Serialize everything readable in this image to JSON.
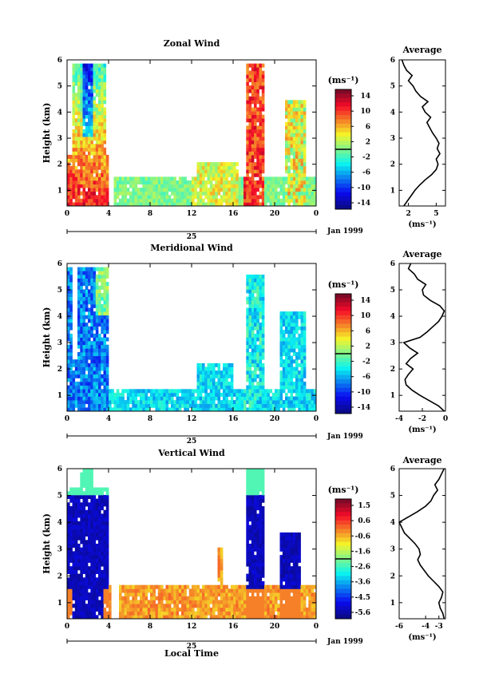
{
  "chart_data": [
    {
      "type": "heatmap",
      "title": "Zonal Wind",
      "ylabel": "Height (km)",
      "xticks": [
        "0",
        "4",
        "8",
        "12",
        "16",
        "20",
        "0"
      ],
      "yticks": [
        "1",
        "2",
        "3",
        "4",
        "5",
        "6"
      ],
      "date_label": "Jan 1999",
      "day_label": "25",
      "unit_label": "(ms⁻¹)",
      "colorbar_ticks": [
        "14",
        "10",
        "6",
        "2",
        "-2",
        "-6",
        "-10",
        "-14"
      ],
      "colorbar_range": [
        -14,
        14
      ],
      "profile": {
        "title": "Average",
        "xticks": [
          "2",
          "5"
        ],
        "xrange": [
          1,
          6
        ],
        "xlabel": "(ms⁻¹)",
        "yticks": [
          "1",
          "2",
          "3",
          "4",
          "5",
          "6"
        ],
        "heights": [
          0.4,
          0.6,
          0.8,
          1.0,
          1.2,
          1.4,
          1.6,
          1.8,
          2.0,
          2.2,
          2.4,
          2.6,
          2.8,
          3.0,
          3.2,
          3.4,
          3.6,
          3.8,
          4.0,
          4.2,
          4.4,
          4.6,
          4.8,
          5.0,
          5.2,
          5.4,
          5.6,
          5.8,
          6.0
        ],
        "values": [
          1.5,
          1.9,
          2.3,
          2.7,
          3.2,
          3.8,
          4.5,
          5.0,
          5.2,
          5.0,
          5.4,
          5.1,
          5.3,
          5.0,
          4.6,
          4.3,
          4.0,
          4.4,
          3.8,
          3.5,
          4.1,
          3.3,
          2.8,
          2.5,
          2.0,
          2.4,
          1.8,
          1.5,
          1.3
        ]
      }
    },
    {
      "type": "heatmap",
      "title": "Meridional Wind",
      "ylabel": "Height (km)",
      "xticks": [
        "0",
        "4",
        "8",
        "12",
        "16",
        "20",
        "0"
      ],
      "yticks": [
        "1",
        "2",
        "3",
        "4",
        "5",
        "6"
      ],
      "date_label": "Jan 1999",
      "day_label": "25",
      "unit_label": "(ms⁻¹)",
      "colorbar_ticks": [
        "14",
        "10",
        "6",
        "2",
        "-2",
        "-6",
        "-10",
        "-14"
      ],
      "colorbar_range": [
        -14,
        14
      ],
      "profile": {
        "title": "Average",
        "xticks": [
          "-4",
          "-2",
          "0"
        ],
        "xrange": [
          -4,
          0
        ],
        "xlabel": "(ms⁻¹)",
        "yticks": [
          "1",
          "2",
          "3",
          "4",
          "5",
          "6"
        ],
        "heights": [
          0.4,
          0.6,
          0.8,
          1.0,
          1.2,
          1.4,
          1.6,
          1.8,
          2.0,
          2.2,
          2.4,
          2.6,
          2.8,
          3.0,
          3.2,
          3.4,
          3.6,
          3.8,
          4.0,
          4.2,
          4.4,
          4.6,
          4.8,
          5.0,
          5.2,
          5.4,
          5.6,
          5.8,
          6.0
        ],
        "values": [
          -0.1,
          -0.6,
          -1.4,
          -2.2,
          -2.9,
          -3.4,
          -3.5,
          -3.2,
          -2.8,
          -3.4,
          -3.0,
          -2.4,
          -3.1,
          -3.6,
          -2.2,
          -1.6,
          -1.1,
          -0.6,
          -0.3,
          -0.1,
          -0.5,
          -1.3,
          -1.9,
          -2.0,
          -1.7,
          -2.4,
          -2.7,
          -3.2,
          -3.0
        ]
      }
    },
    {
      "type": "heatmap",
      "title": "Vertical Wind",
      "ylabel": "Height (km)",
      "xlabel": "Local Time",
      "xticks": [
        "0",
        "4",
        "8",
        "12",
        "16",
        "20",
        "0"
      ],
      "yticks": [
        "1",
        "2",
        "3",
        "4",
        "5",
        "6"
      ],
      "date_label": "Jan 1999",
      "day_label": "25",
      "unit_label": "(ms⁻¹)",
      "colorbar_ticks": [
        "1.5",
        "0.6",
        "-0.6",
        "-1.6",
        "-2.6",
        "-3.6",
        "-4.5",
        "-5.6"
      ],
      "colorbar_range": [
        -5.6,
        1.5
      ],
      "profile": {
        "title": "Average",
        "xticks": [
          "-6",
          "-4",
          "-3"
        ],
        "xrange": [
          -6,
          -2.5
        ],
        "xlabel": "(ms⁻¹)",
        "yticks": [
          "1",
          "2",
          "3",
          "4",
          "5",
          "6"
        ],
        "heights": [
          0.4,
          0.6,
          0.8,
          1.0,
          1.2,
          1.4,
          1.6,
          1.8,
          2.0,
          2.2,
          2.4,
          2.6,
          2.8,
          3.0,
          3.2,
          3.4,
          3.6,
          3.8,
          4.0,
          4.2,
          4.4,
          4.6,
          4.8,
          5.0,
          5.2,
          5.4,
          5.6,
          5.8,
          6.0
        ],
        "values": [
          -2.6,
          -2.7,
          -2.9,
          -3.0,
          -2.8,
          -2.7,
          -3.0,
          -3.4,
          -3.8,
          -4.1,
          -4.4,
          -4.6,
          -4.4,
          -4.5,
          -4.8,
          -5.2,
          -5.6,
          -5.8,
          -6.0,
          -5.3,
          -4.6,
          -4.0,
          -3.6,
          -3.4,
          -3.1,
          -3.3,
          -3.0,
          -2.8,
          -2.6
        ]
      }
    }
  ]
}
